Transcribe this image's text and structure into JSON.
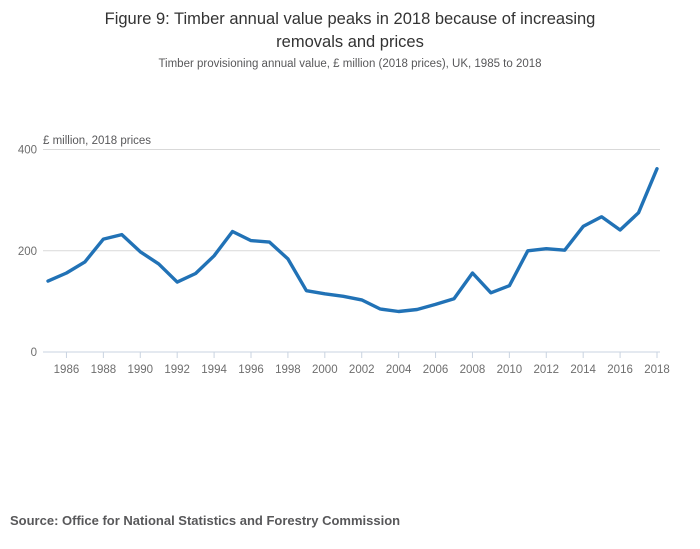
{
  "page": {
    "title_line1": "Figure 9: Timber annual value peaks in 2018 because of increasing",
    "title_line2": "removals and prices",
    "subtitle": "Timber provisioning annual value, £ million (2018 prices), UK, 1985 to 2018",
    "source": "Source: Office for National Statistics and Forestry Commission"
  },
  "chart_data": {
    "type": "line",
    "title": "Figure 9: Timber annual value peaks in 2018 because of increasing removals and prices",
    "subtitle": "Timber provisioning annual value, £ million (2018 prices), UK, 1985 to 2018",
    "unit_label": "£ million, 2018 prices",
    "xlabel": "",
    "ylabel": "£ million, 2018 prices",
    "x": [
      1985,
      1986,
      1987,
      1988,
      1989,
      1990,
      1991,
      1992,
      1993,
      1994,
      1995,
      1996,
      1997,
      1998,
      1999,
      2000,
      2001,
      2002,
      2003,
      2004,
      2005,
      2006,
      2007,
      2008,
      2009,
      2010,
      2011,
      2012,
      2013,
      2014,
      2015,
      2016,
      2017,
      2018
    ],
    "series": [
      {
        "name": "Timber provisioning annual value",
        "values": [
          140,
          156,
          178,
          223,
          232,
          198,
          174,
          138,
          155,
          190,
          238,
          220,
          217,
          184,
          121,
          115,
          110,
          103,
          85,
          80,
          84,
          94,
          105,
          156,
          117,
          131,
          200,
          204,
          201,
          248,
          267,
          241,
          275,
          362
        ]
      }
    ],
    "ylim": [
      0,
      400
    ],
    "xlim": [
      1985,
      2018
    ],
    "y_ticks": [
      0,
      200,
      400
    ],
    "x_tick_years": [
      1986,
      1988,
      1990,
      1992,
      1994,
      1996,
      1998,
      2000,
      2002,
      2004,
      2006,
      2008,
      2010,
      2012,
      2014,
      2016,
      2018
    ],
    "grid": "horizontal",
    "legend": "none",
    "line_color": "#2172b6",
    "grid_color": "#d9d9d9",
    "axis_color": "#c9d3e0",
    "tick_label_color": "#6e6e6e"
  }
}
